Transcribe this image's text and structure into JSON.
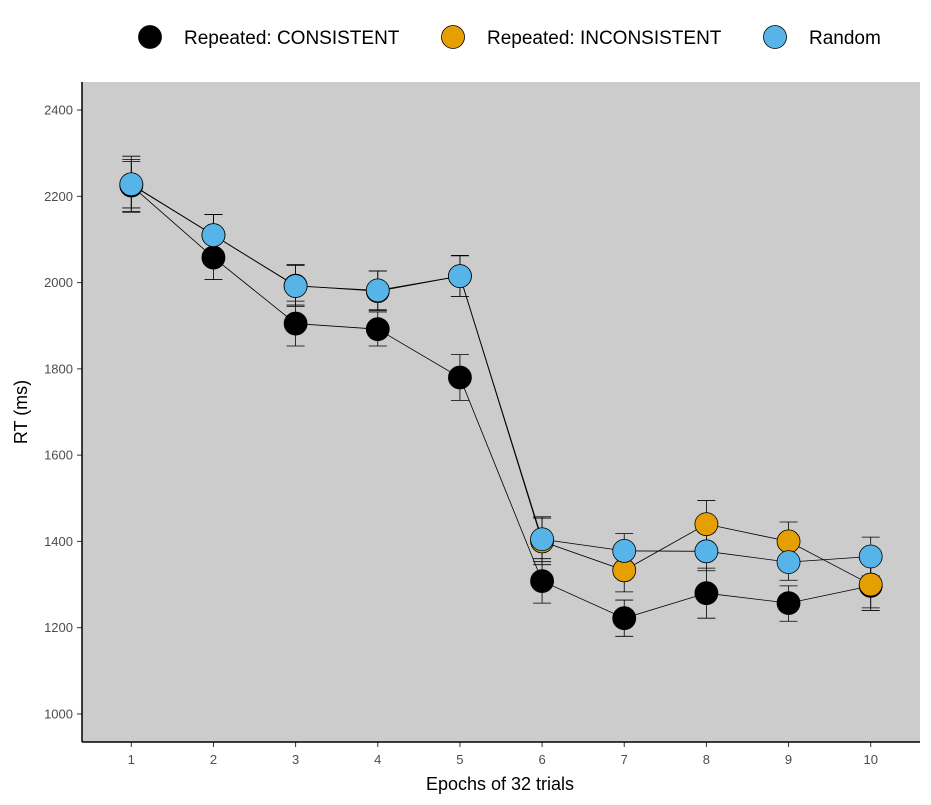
{
  "chart_data": {
    "type": "line",
    "xlabel": "Epochs of 32 trials",
    "ylabel": "RT (ms)",
    "x": [
      1,
      2,
      3,
      4,
      5,
      6,
      7,
      8,
      9,
      10
    ],
    "x_tick_labels": [
      "1",
      "2",
      "3",
      "4",
      "5",
      "6",
      "7",
      "8",
      "9",
      "10"
    ],
    "xlim": [
      0.4,
      10.6
    ],
    "ylim": [
      935,
      2465
    ],
    "y_ticks": [
      1000,
      1200,
      1400,
      1600,
      1800,
      2000,
      2200,
      2400
    ],
    "y_tick_labels": [
      "1000",
      "1200",
      "1400",
      "1600",
      "1800",
      "2000",
      "2200",
      "2400"
    ],
    "grid": false,
    "panel_background": "#cccccc",
    "legend_position": "top",
    "series": [
      {
        "name": "Repeated: CONSISTENT",
        "color": "#000000",
        "values": [
          2225,
          2058,
          1905,
          1892,
          1780,
          1308,
          1222,
          1280,
          1257,
          1297
        ],
        "error_low": [
          2165,
          2007,
          1853,
          1853,
          1727,
          1257,
          1180,
          1222,
          1215,
          1240
        ],
        "error_high": [
          2285,
          2108,
          1957,
          1932,
          1833,
          1360,
          1264,
          1338,
          1297,
          1354
        ]
      },
      {
        "name": "Repeated: INCONSISTENT",
        "color": "#E69F00",
        "values": [
          2227,
          2110,
          1993,
          1980,
          2015,
          1400,
          1333,
          1440,
          1400,
          1300
        ],
        "error_low": [
          2173,
          2065,
          1948,
          1935,
          1968,
          1346,
          1283,
          1386,
          1355,
          1246
        ],
        "error_high": [
          2281,
          2158,
          2040,
          2027,
          2063,
          1454,
          1380,
          1495,
          1445,
          1354
        ]
      },
      {
        "name": "Random",
        "color": "#56B4E9",
        "values": [
          2228,
          2110,
          1992,
          1982,
          2015,
          1405,
          1378,
          1377,
          1352,
          1365
        ],
        "error_low": [
          2163,
          2063,
          1945,
          1937,
          1968,
          1353,
          1337,
          1332,
          1310,
          1320
        ],
        "error_high": [
          2293,
          2158,
          2042,
          2027,
          2062,
          1457,
          1418,
          1422,
          1394,
          1410
        ]
      }
    ]
  }
}
